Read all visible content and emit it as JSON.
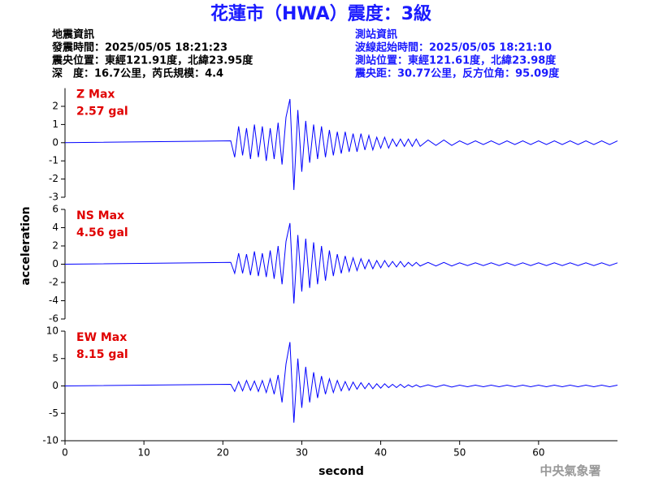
{
  "title": "花蓮市（HWA）震度：3級",
  "header": {
    "left": [
      "地震資訊",
      "發震時間：2025/05/05 18:21:23",
      "震央位置：東經121.91度，北緯23.95度",
      "深　度：16.7公里，芮氏規模：4.4"
    ],
    "right": [
      "測站資訊",
      "波線起始時間：2025/05/05 18:21:10",
      "測站位置：東經121.61度，北緯23.98度",
      "震央距：30.77公里，反方位角：95.09度"
    ]
  },
  "ylabel": "acceleration",
  "xlabel": "second",
  "footer": "中央氣象署",
  "chart_data": [
    {
      "type": "line",
      "label": "Z Max",
      "max_label": "2.57 gal",
      "color": "#0000ff",
      "label_color": "#e00000",
      "x": [
        0,
        21,
        21.5,
        22,
        22.5,
        23,
        23.5,
        24,
        24.5,
        25,
        25.5,
        26,
        26.5,
        27,
        27.5,
        28,
        28.5,
        29,
        29.5,
        30,
        30.5,
        31,
        31.5,
        32,
        32.5,
        33,
        33.5,
        34,
        34.5,
        35,
        35.5,
        36,
        36.5,
        37,
        37.5,
        38,
        38.5,
        39,
        39.5,
        40,
        40.5,
        41,
        41.5,
        42,
        42.5,
        43,
        43.5,
        44,
        44.5,
        45,
        46,
        47,
        48,
        49,
        50,
        51,
        52,
        53,
        54,
        55,
        56,
        57,
        58,
        59,
        60,
        61,
        62,
        63,
        64,
        65,
        66,
        67,
        68,
        69,
        70
      ],
      "values": [
        0,
        0.1,
        -0.8,
        0.9,
        -0.7,
        0.8,
        -0.9,
        1.0,
        -0.8,
        0.9,
        -1.0,
        0.8,
        -0.9,
        1.1,
        -1.2,
        1.4,
        2.4,
        -2.6,
        1.8,
        -1.6,
        1.2,
        -1.1,
        1.0,
        -0.9,
        0.9,
        -0.8,
        0.7,
        -0.7,
        0.6,
        -0.6,
        0.6,
        -0.5,
        0.5,
        -0.5,
        0.5,
        -0.4,
        0.4,
        -0.4,
        0.3,
        -0.3,
        0.3,
        -0.3,
        0.2,
        -0.2,
        0.2,
        -0.2,
        0.2,
        -0.2,
        0.2,
        -0.2,
        0.15,
        -0.15,
        0.15,
        -0.15,
        0.1,
        -0.1,
        0.1,
        -0.1,
        0.1,
        -0.1,
        0.1,
        -0.1,
        0.1,
        -0.1,
        0.1,
        -0.1,
        0.1,
        -0.1,
        0.1,
        -0.1,
        0.1,
        -0.1,
        0.1,
        -0.1,
        0.1
      ],
      "xlim": [
        0,
        70
      ],
      "ylim": [
        -3,
        3
      ],
      "yticks": [
        -3,
        -2,
        -1,
        0,
        1,
        2
      ]
    },
    {
      "type": "line",
      "label": "NS Max",
      "max_label": "4.56 gal",
      "color": "#0000ff",
      "label_color": "#e00000",
      "x": [
        0,
        21,
        21.5,
        22,
        22.5,
        23,
        23.5,
        24,
        24.5,
        25,
        25.5,
        26,
        26.5,
        27,
        27.5,
        28,
        28.5,
        29,
        29.5,
        30,
        30.5,
        31,
        31.5,
        32,
        32.5,
        33,
        33.5,
        34,
        34.5,
        35,
        35.5,
        36,
        36.5,
        37,
        37.5,
        38,
        38.5,
        39,
        39.5,
        40,
        40.5,
        41,
        41.5,
        42,
        42.5,
        43,
        43.5,
        44,
        44.5,
        45,
        46,
        47,
        48,
        49,
        50,
        51,
        52,
        53,
        54,
        55,
        56,
        57,
        58,
        59,
        60,
        61,
        62,
        63,
        64,
        65,
        66,
        67,
        68,
        69,
        70
      ],
      "values": [
        0,
        0.2,
        -1.0,
        1.2,
        -1.0,
        1.1,
        -1.2,
        1.4,
        -1.3,
        1.2,
        -1.4,
        1.5,
        -1.6,
        2.0,
        -2.2,
        2.5,
        4.5,
        -4.3,
        3.2,
        -3.0,
        2.8,
        -2.6,
        2.4,
        -2.2,
        2.0,
        -1.8,
        1.5,
        -1.3,
        1.1,
        -1.0,
        0.9,
        -0.8,
        0.7,
        -0.7,
        0.6,
        -0.5,
        0.5,
        -0.5,
        0.4,
        -0.4,
        0.4,
        -0.3,
        0.3,
        -0.3,
        0.3,
        -0.3,
        0.2,
        -0.2,
        0.2,
        -0.2,
        0.2,
        -0.2,
        0.2,
        -0.2,
        0.15,
        -0.15,
        0.15,
        -0.15,
        0.15,
        -0.15,
        0.15,
        -0.15,
        0.15,
        -0.15,
        0.15,
        -0.15,
        0.15,
        -0.15,
        0.15,
        -0.15,
        0.15,
        -0.15,
        0.15,
        -0.15,
        0.15
      ],
      "xlim": [
        0,
        70
      ],
      "ylim": [
        -6,
        6
      ],
      "yticks": [
        -6,
        -4,
        -2,
        0,
        2,
        4,
        6
      ]
    },
    {
      "type": "line",
      "label": "EW Max",
      "max_label": "8.15 gal",
      "color": "#0000ff",
      "label_color": "#e00000",
      "x": [
        0,
        21,
        21.5,
        22,
        22.5,
        23,
        23.5,
        24,
        24.5,
        25,
        25.5,
        26,
        26.5,
        27,
        27.5,
        28,
        28.5,
        29,
        29.5,
        30,
        30.5,
        31,
        31.5,
        32,
        32.5,
        33,
        33.5,
        34,
        34.5,
        35,
        35.5,
        36,
        36.5,
        37,
        37.5,
        38,
        38.5,
        39,
        39.5,
        40,
        40.5,
        41,
        41.5,
        42,
        42.5,
        43,
        43.5,
        44,
        44.5,
        45,
        46,
        47,
        48,
        49,
        50,
        51,
        52,
        53,
        54,
        55,
        56,
        57,
        58,
        59,
        60,
        61,
        62,
        63,
        64,
        65,
        66,
        67,
        68,
        69,
        70
      ],
      "values": [
        0,
        0.3,
        -1.0,
        0.8,
        -0.9,
        1.0,
        -0.8,
        0.9,
        -1.0,
        1.0,
        -1.2,
        1.3,
        -1.5,
        2.0,
        -3.0,
        4.0,
        8.0,
        -6.7,
        5.0,
        -4.0,
        3.5,
        -3.0,
        2.5,
        -2.2,
        1.8,
        -1.5,
        1.3,
        -1.2,
        1.0,
        -0.9,
        0.8,
        -0.8,
        0.7,
        -0.6,
        0.6,
        -0.5,
        0.5,
        -0.5,
        0.4,
        -0.4,
        0.4,
        -0.3,
        0.3,
        -0.3,
        0.3,
        -0.3,
        0.2,
        -0.2,
        0.2,
        -0.2,
        0.2,
        -0.2,
        0.2,
        -0.2,
        0.15,
        -0.15,
        0.15,
        -0.15,
        0.15,
        -0.15,
        0.15,
        -0.15,
        0.15,
        -0.15,
        0.15,
        -0.15,
        0.15,
        -0.15,
        0.15,
        -0.15,
        0.15,
        -0.15,
        0.15,
        -0.15,
        0.15
      ],
      "xlim": [
        0,
        70
      ],
      "ylim": [
        -10,
        10
      ],
      "yticks": [
        -10,
        -5,
        0,
        5,
        10
      ],
      "xticks": [
        0,
        10,
        20,
        30,
        40,
        50,
        60
      ]
    }
  ]
}
